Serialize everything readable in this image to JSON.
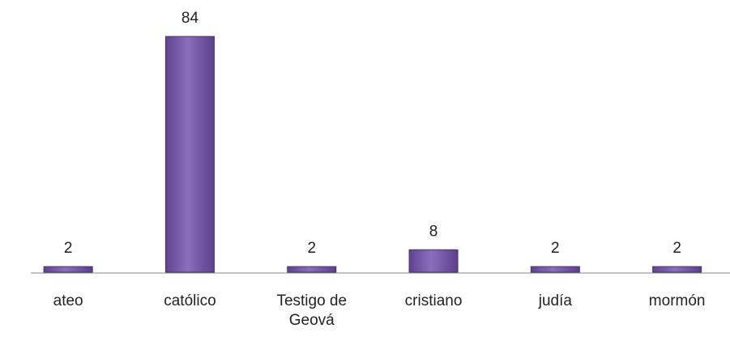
{
  "chart_data": {
    "type": "bar",
    "categories": [
      "ateo",
      "católico",
      "Testigo de Geová",
      "cristiano",
      "judía",
      "mormón"
    ],
    "values": [
      2,
      84,
      2,
      8,
      2,
      2
    ],
    "color": "#7b5fab"
  }
}
